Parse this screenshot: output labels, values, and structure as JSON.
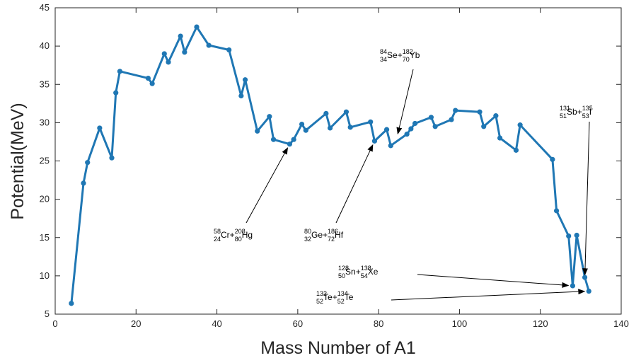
{
  "chart_data": {
    "type": "line",
    "xlabel": "Mass Number of A1",
    "ylabel": "Potential(MeV)",
    "xlim": [
      0,
      140
    ],
    "ylim": [
      5,
      45
    ],
    "xticks": [
      "0",
      "20",
      "40",
      "60",
      "80",
      "100",
      "120",
      "140"
    ],
    "yticks": [
      "5",
      "10",
      "15",
      "20",
      "25",
      "30",
      "35",
      "40",
      "45"
    ],
    "grid": false,
    "series_color": "#1f77b4",
    "series": [
      {
        "x": [
          4,
          7,
          8,
          11,
          14,
          15,
          16,
          23,
          24,
          27,
          28,
          31,
          32,
          35,
          38,
          43,
          46,
          47,
          50,
          53,
          54,
          58,
          59,
          61,
          62,
          67,
          68,
          72,
          73,
          78,
          79,
          82,
          83,
          87,
          88,
          89,
          93,
          94,
          98,
          99,
          105,
          106,
          109,
          110,
          114,
          115,
          123,
          124,
          127,
          128,
          129,
          131,
          132
        ],
        "values": [
          6.4,
          22.1,
          24.8,
          29.3,
          25.4,
          33.9,
          36.7,
          35.8,
          35.1,
          39.0,
          37.9,
          41.3,
          39.2,
          42.5,
          40.1,
          39.5,
          33.5,
          35.6,
          28.9,
          30.8,
          27.8,
          27.2,
          27.8,
          29.8,
          29.0,
          31.2,
          29.3,
          31.4,
          29.4,
          30.1,
          27.6,
          29.1,
          27.0,
          28.5,
          29.2,
          29.9,
          30.7,
          29.5,
          30.4,
          31.6,
          31.4,
          29.5,
          30.9,
          28.0,
          26.4,
          29.7,
          25.2,
          18.5,
          15.2,
          8.7,
          15.3,
          9.8,
          8.0
        ]
      }
    ],
    "annotations": [
      {
        "tokens": [
          {
            "t": "58",
            "s": "sup"
          },
          {
            "t": "24",
            "s": "sub"
          },
          {
            "t": "Cr+"
          },
          {
            "t": "208",
            "s": "sup"
          },
          {
            "t": "80",
            "s": "sub"
          },
          {
            "t": "Hg"
          }
        ],
        "point": [
          58,
          27.2
        ]
      },
      {
        "tokens": [
          {
            "t": "80",
            "s": "sup"
          },
          {
            "t": "32",
            "s": "sub"
          },
          {
            "t": "Ge+"
          },
          {
            "t": "186",
            "s": "sup"
          },
          {
            "t": "72",
            "s": "sub"
          },
          {
            "t": "Hf"
          }
        ],
        "point": [
          79,
          27.6
        ]
      },
      {
        "tokens": [
          {
            "t": "84",
            "s": "sup"
          },
          {
            "t": "34",
            "s": "sub"
          },
          {
            "t": "Se+"
          },
          {
            "t": "182",
            "s": "sup"
          },
          {
            "t": "70",
            "s": "sub"
          },
          {
            "t": "Yb"
          }
        ],
        "point": [
          84.5,
          28.0
        ]
      },
      {
        "tokens": [
          {
            "t": "131",
            "s": "sup"
          },
          {
            "t": "51",
            "s": "sub"
          },
          {
            "t": "Sb+"
          },
          {
            "t": "135",
            "s": "sup"
          },
          {
            "t": "53",
            "s": "sub"
          },
          {
            "t": "I"
          }
        ],
        "point": [
          131,
          9.6
        ]
      },
      {
        "tokens": [
          {
            "t": "128",
            "s": "sup"
          },
          {
            "t": "50",
            "s": "sub"
          },
          {
            "t": "Sn+"
          },
          {
            "t": "138",
            "s": "sup"
          },
          {
            "t": "54",
            "s": "sub"
          },
          {
            "t": "Xe"
          }
        ],
        "point": [
          128,
          8.7
        ]
      },
      {
        "tokens": [
          {
            "t": "132",
            "s": "sup"
          },
          {
            "t": "52",
            "s": "sub"
          },
          {
            "t": "Te+"
          },
          {
            "t": "134",
            "s": "sup"
          },
          {
            "t": "52",
            "s": "sub"
          },
          {
            "t": "Te"
          }
        ],
        "point": [
          132,
          8.0
        ]
      }
    ]
  }
}
